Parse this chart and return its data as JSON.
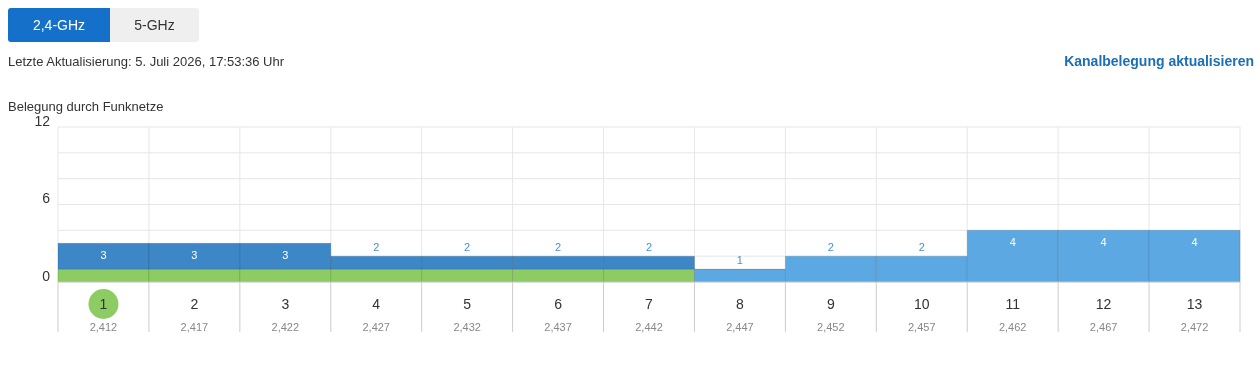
{
  "chart_data": {
    "type": "bar",
    "title": "Belegung durch Funknetze",
    "annotations": [
      "2,4-GHz",
      "5-GHz",
      "Letzte Aktualisierung: 5. Juli 2026, 17:53:36 Uhr",
      "Kanalbelegung aktualisieren"
    ],
    "categories": [
      "1\n2,412",
      "2\n2,417",
      "3\n2,422",
      "4\n2,427",
      "5\n2,432",
      "6\n2,437",
      "7\n2,442",
      "8\n2,447",
      "9\n2,452",
      "10\n2,457",
      "11\n2,462",
      "12\n2,467",
      "13\n2,472"
    ],
    "stacked": true,
    "series": [
      {
        "color": "#8ccc62",
        "values": [
          1,
          1,
          1,
          1,
          1,
          1,
          1,
          0,
          0,
          0,
          0,
          0,
          0
        ]
      },
      {
        "color": "#3e87c6",
        "values": [
          2,
          2,
          2,
          1,
          1,
          1,
          1,
          0,
          0,
          0,
          0,
          0,
          0
        ]
      },
      {
        "color": "#5ba8e3",
        "values": [
          0,
          0,
          0,
          0,
          0,
          0,
          0,
          1,
          2,
          2,
          4,
          4,
          4
        ]
      }
    ],
    "totals": [
      "3",
      "3",
      "3",
      "2",
      "2",
      "2",
      "2",
      "1",
      "2",
      "2",
      "4",
      "4",
      "4"
    ],
    "ylim": [
      0,
      12
    ],
    "yticks": [
      0,
      {
        "value": 2,
        "label": null
      },
      {
        "value": 4,
        "label": null
      },
      6,
      {
        "value": 8,
        "label": null
      },
      {
        "value": 10,
        "label": null
      },
      12
    ],
    "grid": true,
    "legend": false
  }
}
